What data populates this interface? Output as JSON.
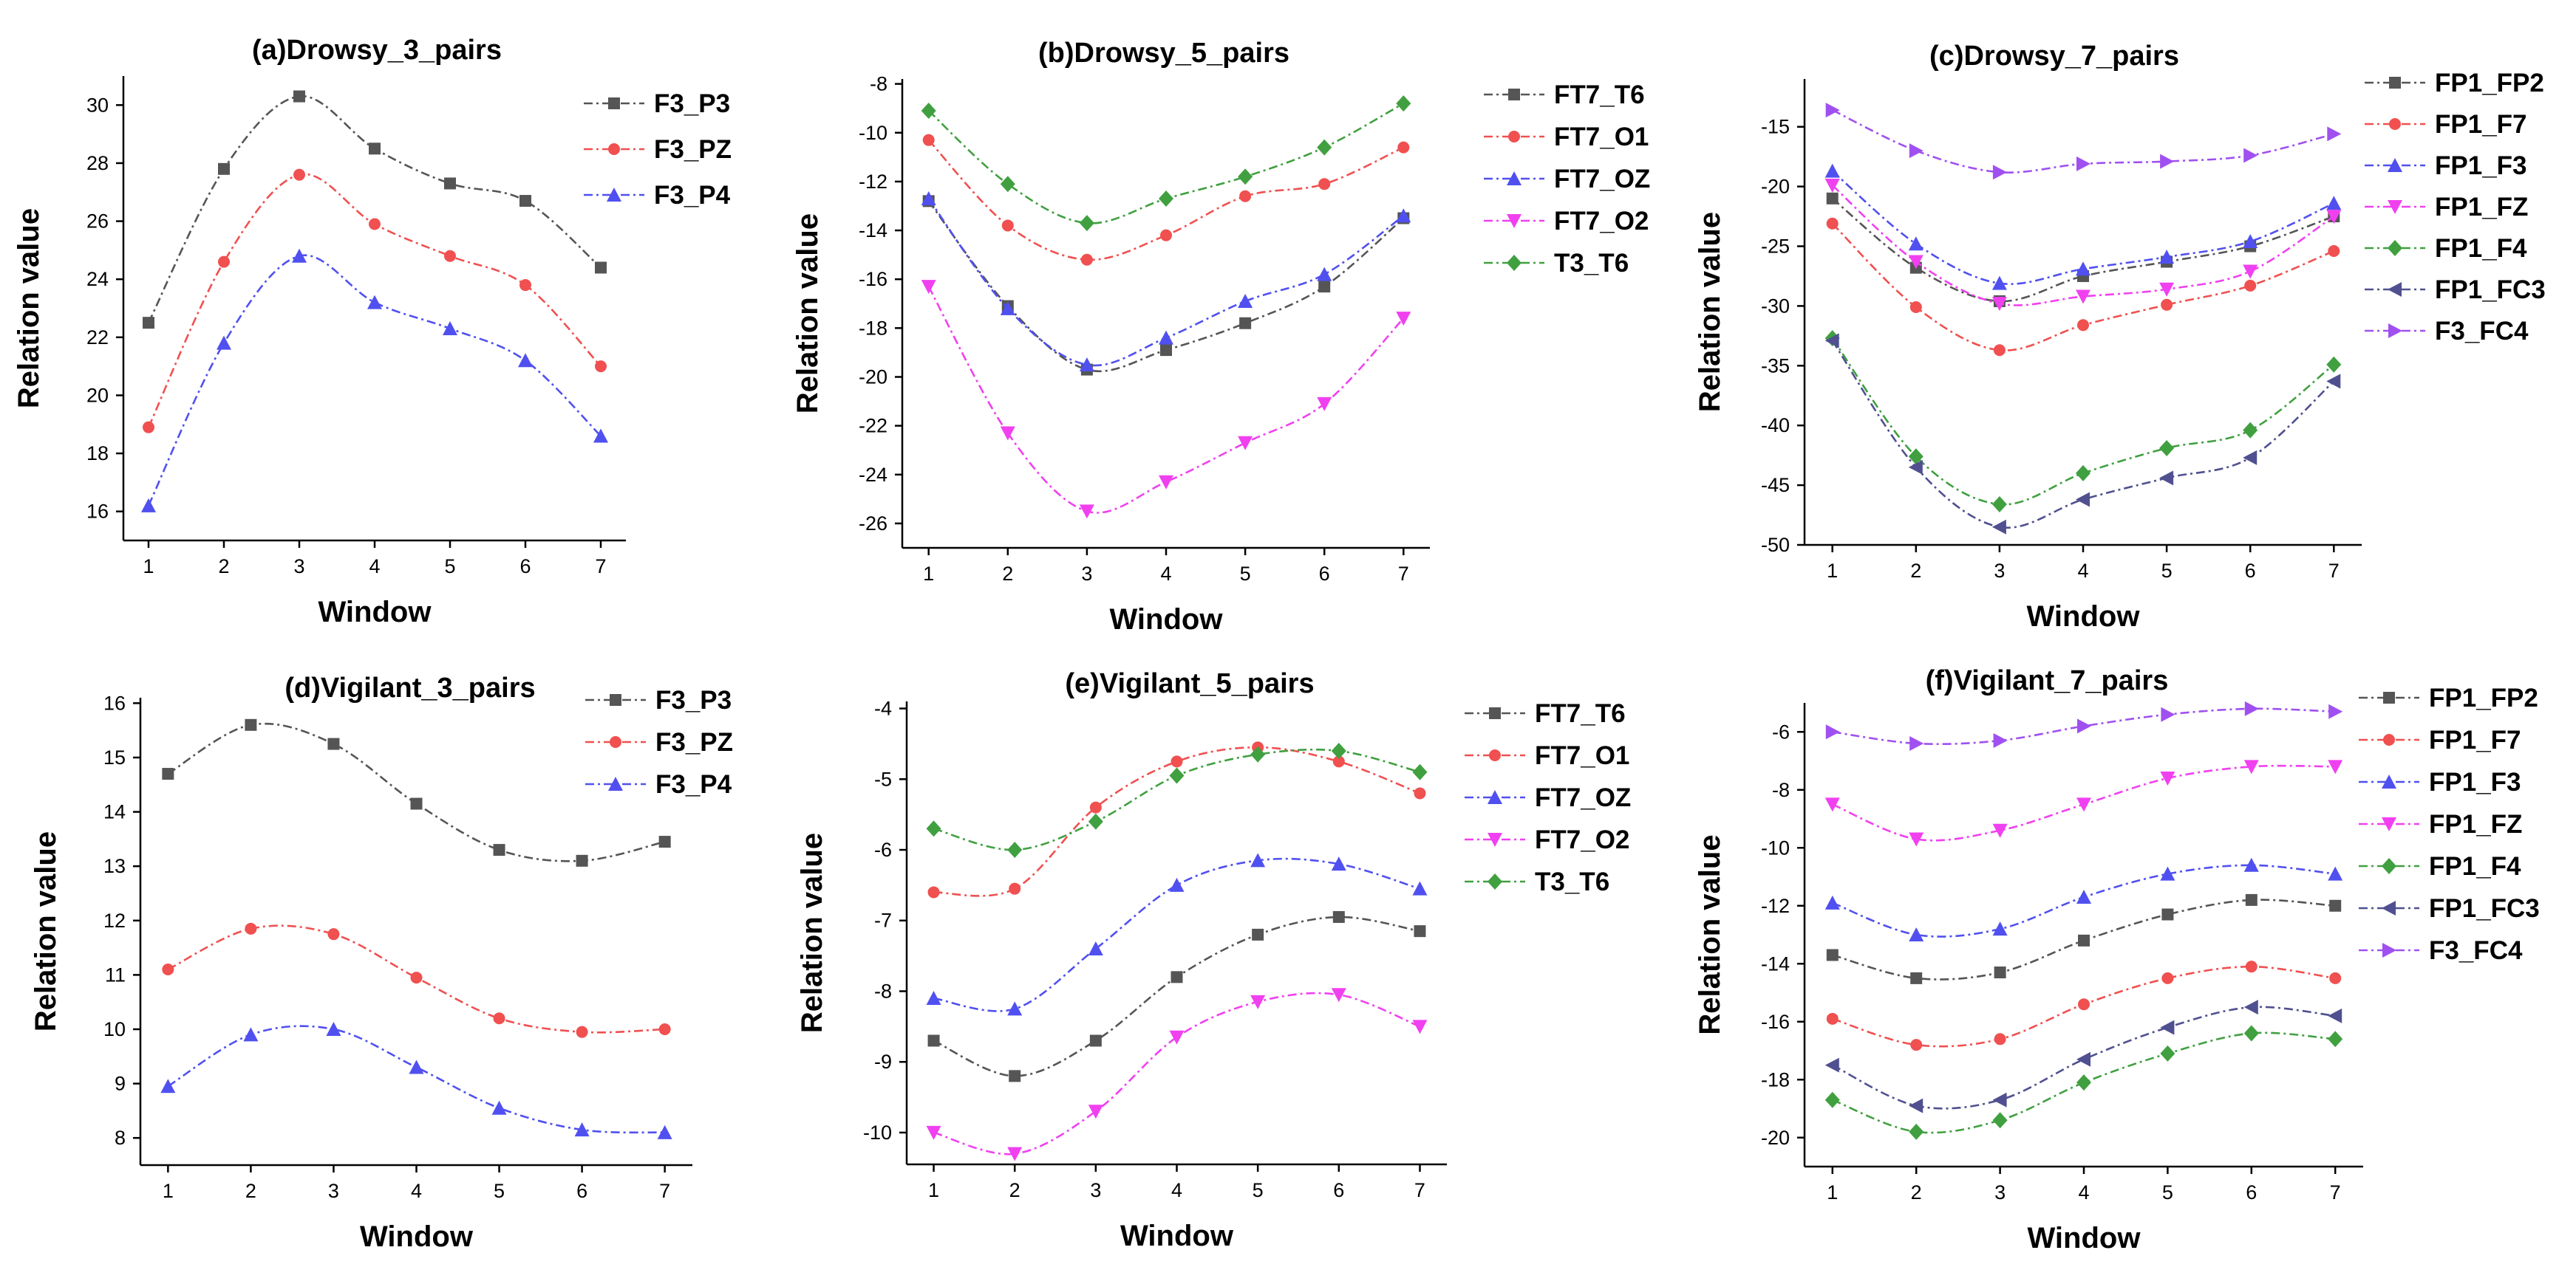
{
  "colors": {
    "F3_P3": "#555555",
    "F3_PZ": "#f05050",
    "F3_P4": "#5050f0",
    "FT7_T6": "#555555",
    "FT7_O1": "#f05050",
    "FT7_OZ": "#5050f0",
    "FT7_O2": "#f040f0",
    "T3_T6": "#40a040",
    "FP1_FP2": "#555555",
    "FP1_F7": "#f05050",
    "FP1_F3": "#5050f0",
    "FP1_FZ": "#f040f0",
    "FP1_F4": "#40a040",
    "FP1_FC3": "#505090",
    "F3_FC4": "#a050f0"
  },
  "chart_data": [
    {
      "type": "line",
      "title": "(a)Drowsy_3_pairs",
      "xlabel": "Window",
      "ylabel": "Relation value",
      "x": [
        1,
        2,
        3,
        4,
        5,
        6,
        7
      ],
      "ylim": [
        15,
        31
      ],
      "yticks": [
        16,
        18,
        20,
        22,
        24,
        26,
        28,
        30
      ],
      "series": [
        {
          "name": "F3_P3",
          "marker": "square",
          "values": [
            22.5,
            27.8,
            30.3,
            28.5,
            27.3,
            26.7,
            24.4
          ]
        },
        {
          "name": "F3_PZ",
          "marker": "circle",
          "values": [
            18.9,
            24.6,
            27.6,
            25.9,
            24.8,
            23.8,
            21.0
          ]
        },
        {
          "name": "F3_P4",
          "marker": "triangle-up",
          "values": [
            16.2,
            21.8,
            24.8,
            23.2,
            22.3,
            21.2,
            18.6
          ]
        }
      ]
    },
    {
      "type": "line",
      "title": "(b)Drowsy_5_pairs",
      "xlabel": "Window",
      "ylabel": "Relation value",
      "x": [
        1,
        2,
        3,
        4,
        5,
        6,
        7
      ],
      "ylim": [
        -27,
        -7.8
      ],
      "yticks": [
        -26,
        -24,
        -22,
        -20,
        -18,
        -16,
        -14,
        -12,
        -10,
        -8
      ],
      "series": [
        {
          "name": "FT7_T6",
          "marker": "square",
          "values": [
            -12.8,
            -17.1,
            -19.7,
            -18.9,
            -17.8,
            -16.3,
            -13.5
          ]
        },
        {
          "name": "FT7_O1",
          "marker": "circle",
          "values": [
            -10.3,
            -13.8,
            -15.2,
            -14.2,
            -12.6,
            -12.1,
            -10.6
          ]
        },
        {
          "name": "FT7_OZ",
          "marker": "triangle-up",
          "values": [
            -12.7,
            -17.2,
            -19.5,
            -18.4,
            -16.9,
            -15.8,
            -13.4
          ]
        },
        {
          "name": "FT7_O2",
          "marker": "triangle-down",
          "values": [
            -16.3,
            -22.3,
            -25.5,
            -24.3,
            -22.7,
            -21.1,
            -17.6
          ]
        },
        {
          "name": "T3_T6",
          "marker": "diamond",
          "values": [
            -9.1,
            -12.1,
            -13.7,
            -12.7,
            -11.8,
            -10.6,
            -8.8
          ]
        }
      ]
    },
    {
      "type": "line",
      "title": "(c)Drowsy_7_pairs",
      "xlabel": "Window",
      "ylabel": "Relation value",
      "x": [
        1,
        2,
        3,
        4,
        5,
        6,
        7
      ],
      "ylim": [
        -50,
        -11
      ],
      "yticks": [
        -50,
        -45,
        -40,
        -35,
        -30,
        -25,
        -20,
        -15
      ],
      "series": [
        {
          "name": "FP1_FP2",
          "marker": "square",
          "values": [
            -21.0,
            -26.8,
            -29.6,
            -27.5,
            -26.3,
            -25.0,
            -22.5
          ]
        },
        {
          "name": "FP1_F7",
          "marker": "circle",
          "values": [
            -23.1,
            -30.1,
            -33.7,
            -31.6,
            -29.9,
            -28.3,
            -25.4
          ]
        },
        {
          "name": "FP1_F3",
          "marker": "triangle-up",
          "values": [
            -18.7,
            -24.8,
            -28.1,
            -26.9,
            -25.9,
            -24.6,
            -21.4
          ]
        },
        {
          "name": "FP1_FZ",
          "marker": "triangle-down",
          "values": [
            -19.9,
            -26.3,
            -29.8,
            -29.2,
            -28.6,
            -27.1,
            -22.5
          ]
        },
        {
          "name": "FP1_F4",
          "marker": "diamond",
          "values": [
            -32.7,
            -42.6,
            -46.6,
            -44.0,
            -41.9,
            -40.4,
            -34.9
          ]
        },
        {
          "name": "FP1_FC3",
          "marker": "triangle-left",
          "values": [
            -32.9,
            -43.5,
            -48.5,
            -46.2,
            -44.4,
            -42.7,
            -36.3
          ]
        },
        {
          "name": "F3_FC4",
          "marker": "triangle-right",
          "values": [
            -13.6,
            -17.0,
            -18.8,
            -18.1,
            -17.9,
            -17.4,
            -15.6
          ]
        }
      ]
    },
    {
      "type": "line",
      "title": "(d)Vigilant_3_pairs",
      "xlabel": "Window",
      "ylabel": "Relation value",
      "x": [
        1,
        2,
        3,
        4,
        5,
        6,
        7
      ],
      "ylim": [
        7.5,
        16.1
      ],
      "yticks": [
        8,
        9,
        10,
        11,
        12,
        13,
        14,
        15,
        16
      ],
      "series": [
        {
          "name": "F3_P3",
          "marker": "square",
          "values": [
            14.7,
            15.6,
            15.25,
            14.15,
            13.3,
            13.1,
            13.45
          ]
        },
        {
          "name": "F3_PZ",
          "marker": "circle",
          "values": [
            11.1,
            11.85,
            11.75,
            10.95,
            10.2,
            9.95,
            10.0
          ]
        },
        {
          "name": "F3_P4",
          "marker": "triangle-up",
          "values": [
            8.95,
            9.9,
            10.0,
            9.3,
            8.55,
            8.15,
            8.1
          ]
        }
      ]
    },
    {
      "type": "line",
      "title": "(e)Vigilant_5_pairs",
      "xlabel": "Window",
      "ylabel": "Relation value",
      "x": [
        1,
        2,
        3,
        4,
        5,
        6,
        7
      ],
      "ylim": [
        -10.45,
        -3.9
      ],
      "yticks": [
        -10,
        -9,
        -8,
        -7,
        -6,
        -5,
        -4
      ],
      "series": [
        {
          "name": "FT7_T6",
          "marker": "square",
          "values": [
            -8.7,
            -9.2,
            -8.7,
            -7.8,
            -7.2,
            -6.95,
            -7.15
          ]
        },
        {
          "name": "FT7_O1",
          "marker": "circle",
          "values": [
            -6.6,
            -6.55,
            -5.4,
            -4.75,
            -4.55,
            -4.75,
            -5.2
          ]
        },
        {
          "name": "FT7_OZ",
          "marker": "triangle-up",
          "values": [
            -8.1,
            -8.25,
            -7.4,
            -6.5,
            -6.15,
            -6.2,
            -6.55
          ]
        },
        {
          "name": "FT7_O2",
          "marker": "triangle-down",
          "values": [
            -10.0,
            -10.3,
            -9.7,
            -8.65,
            -8.15,
            -8.05,
            -8.5
          ]
        },
        {
          "name": "T3_T6",
          "marker": "diamond",
          "values": [
            -5.7,
            -6.0,
            -5.6,
            -4.95,
            -4.65,
            -4.6,
            -4.9
          ]
        }
      ]
    },
    {
      "type": "line",
      "title": "(f)Vigilant_7_pairs",
      "xlabel": "Window",
      "ylabel": "Relation value",
      "x": [
        1,
        2,
        3,
        4,
        5,
        6,
        7
      ],
      "ylim": [
        -21,
        -5
      ],
      "yticks": [
        -20,
        -18,
        -16,
        -14,
        -12,
        -10,
        -8,
        -6
      ],
      "series": [
        {
          "name": "FP1_FP2",
          "marker": "square",
          "values": [
            -13.7,
            -14.5,
            -14.3,
            -13.2,
            -12.3,
            -11.8,
            -12.0
          ]
        },
        {
          "name": "FP1_F7",
          "marker": "circle",
          "values": [
            -15.9,
            -16.8,
            -16.6,
            -15.4,
            -14.5,
            -14.1,
            -14.5
          ]
        },
        {
          "name": "FP1_F3",
          "marker": "triangle-up",
          "values": [
            -11.9,
            -13.0,
            -12.8,
            -11.7,
            -10.9,
            -10.6,
            -10.9
          ]
        },
        {
          "name": "FP1_FZ",
          "marker": "triangle-down",
          "values": [
            -8.5,
            -9.7,
            -9.4,
            -8.5,
            -7.6,
            -7.2,
            -7.2
          ]
        },
        {
          "name": "FP1_F4",
          "marker": "diamond",
          "values": [
            -18.7,
            -19.8,
            -19.4,
            -18.1,
            -17.1,
            -16.4,
            -16.6
          ]
        },
        {
          "name": "FP1_FC3",
          "marker": "triangle-left",
          "values": [
            -17.5,
            -18.9,
            -18.7,
            -17.3,
            -16.2,
            -15.5,
            -15.8
          ]
        },
        {
          "name": "F3_FC4",
          "marker": "triangle-right",
          "values": [
            -6.0,
            -6.4,
            -6.3,
            -5.8,
            -5.4,
            -5.2,
            -5.3
          ]
        }
      ]
    }
  ]
}
